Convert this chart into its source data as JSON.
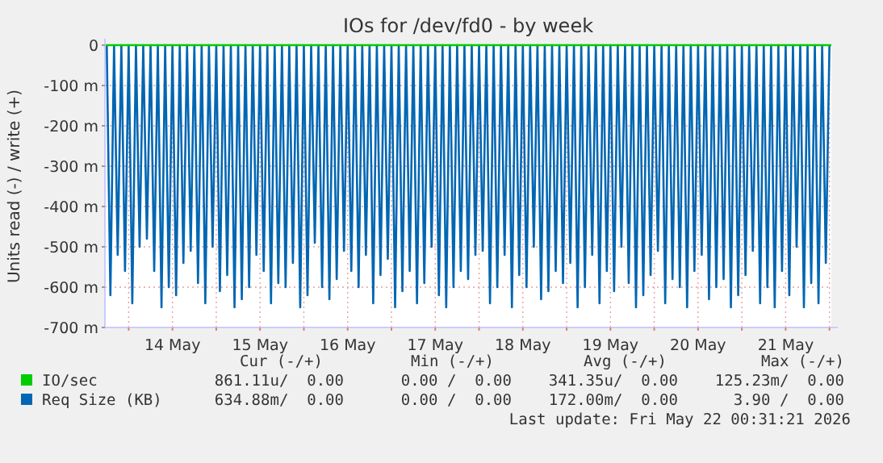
{
  "chart_data": {
    "type": "line",
    "title": "IOs for /dev/fd0 - by week",
    "ylabel": "Units read (-) / write (+)",
    "xlim": [
      "2026-05-13T17:30",
      "2026-05-22T00:31"
    ],
    "xticks": [
      {
        "value": "2026-05-14T00:00",
        "label": null
      },
      {
        "value": "2026-05-14T12:00",
        "label": "14 May"
      },
      {
        "value": "2026-05-15T00:00",
        "label": null
      },
      {
        "value": "2026-05-15T12:00",
        "label": "15 May"
      },
      {
        "value": "2026-05-16T00:00",
        "label": null
      },
      {
        "value": "2026-05-16T12:00",
        "label": "16 May"
      },
      {
        "value": "2026-05-17T00:00",
        "label": null
      },
      {
        "value": "2026-05-17T12:00",
        "label": "17 May"
      },
      {
        "value": "2026-05-18T00:00",
        "label": null
      },
      {
        "value": "2026-05-18T12:00",
        "label": "18 May"
      },
      {
        "value": "2026-05-19T00:00",
        "label": null
      },
      {
        "value": "2026-05-19T12:00",
        "label": "19 May"
      },
      {
        "value": "2026-05-20T00:00",
        "label": null
      },
      {
        "value": "2026-05-20T12:00",
        "label": "20 May"
      },
      {
        "value": "2026-05-21T00:00",
        "label": null
      },
      {
        "value": "2026-05-21T12:00",
        "label": "21 May"
      },
      {
        "value": "2026-05-22T00:00",
        "label": null
      }
    ],
    "ylim": [
      -700,
      0
    ],
    "yticks": [
      {
        "value": -700,
        "label": "-700 m"
      },
      {
        "value": -600,
        "label": "-600 m"
      },
      {
        "value": -500,
        "label": "-500 m"
      },
      {
        "value": -400,
        "label": "-400 m"
      },
      {
        "value": -300,
        "label": "-300 m"
      },
      {
        "value": -200,
        "label": "-200 m"
      },
      {
        "value": -100,
        "label": "-100 m"
      },
      0
    ],
    "grid": true,
    "legend": "bottom",
    "series": [
      {
        "name": "IO/sec",
        "color": "#00cc00",
        "x": [
          "2026-05-13T17:30",
          "2026-05-22T00:31"
        ],
        "values": [
          0,
          0
        ]
      },
      {
        "name": "Req Size (KB)",
        "color": "#0066b3",
        "x": [
          "2026-05-13T18:00",
          "2026-05-13T19:00",
          "2026-05-13T20:00",
          "2026-05-13T21:00",
          "2026-05-13T22:00",
          "2026-05-13T23:00",
          "2026-05-14T00:00",
          "2026-05-14T01:00",
          "2026-05-14T02:00",
          "2026-05-14T03:00",
          "2026-05-14T04:00",
          "2026-05-14T05:00",
          "2026-05-14T06:00",
          "2026-05-14T07:00",
          "2026-05-14T08:00",
          "2026-05-14T09:00",
          "2026-05-14T10:00",
          "2026-05-14T11:00",
          "2026-05-14T12:00",
          "2026-05-14T13:00",
          "2026-05-14T14:00",
          "2026-05-14T15:00",
          "2026-05-14T16:00",
          "2026-05-14T17:00",
          "2026-05-14T18:00",
          "2026-05-14T19:00",
          "2026-05-14T20:00",
          "2026-05-14T21:00",
          "2026-05-14T22:00",
          "2026-05-14T23:00",
          "2026-05-15T00:00",
          "2026-05-15T01:00",
          "2026-05-15T02:00",
          "2026-05-15T03:00",
          "2026-05-15T04:00",
          "2026-05-15T05:00",
          "2026-05-15T06:00",
          "2026-05-15T07:00",
          "2026-05-15T08:00",
          "2026-05-15T09:00",
          "2026-05-15T10:00",
          "2026-05-15T11:00",
          "2026-05-15T12:00",
          "2026-05-15T13:00",
          "2026-05-15T14:00",
          "2026-05-15T15:00",
          "2026-05-15T16:00",
          "2026-05-15T17:00",
          "2026-05-15T18:00",
          "2026-05-15T19:00",
          "2026-05-15T20:00",
          "2026-05-15T21:00",
          "2026-05-15T22:00",
          "2026-05-15T23:00",
          "2026-05-16T00:00",
          "2026-05-16T01:00",
          "2026-05-16T02:00",
          "2026-05-16T03:00",
          "2026-05-16T04:00",
          "2026-05-16T05:00",
          "2026-05-16T06:00",
          "2026-05-16T07:00",
          "2026-05-16T08:00",
          "2026-05-16T09:00",
          "2026-05-16T10:00",
          "2026-05-16T11:00",
          "2026-05-16T12:00",
          "2026-05-16T13:00",
          "2026-05-16T14:00",
          "2026-05-16T15:00",
          "2026-05-16T16:00",
          "2026-05-16T17:00",
          "2026-05-16T18:00",
          "2026-05-16T19:00",
          "2026-05-16T20:00",
          "2026-05-16T21:00",
          "2026-05-16T22:00",
          "2026-05-16T23:00",
          "2026-05-17T00:00",
          "2026-05-17T01:00",
          "2026-05-17T02:00",
          "2026-05-17T03:00",
          "2026-05-17T04:00",
          "2026-05-17T05:00",
          "2026-05-17T06:00",
          "2026-05-17T07:00",
          "2026-05-17T08:00",
          "2026-05-17T09:00",
          "2026-05-17T10:00",
          "2026-05-17T11:00",
          "2026-05-17T12:00",
          "2026-05-17T13:00",
          "2026-05-17T14:00",
          "2026-05-17T15:00",
          "2026-05-17T16:00",
          "2026-05-17T17:00",
          "2026-05-17T18:00",
          "2026-05-17T19:00",
          "2026-05-17T20:00",
          "2026-05-17T21:00",
          "2026-05-17T22:00",
          "2026-05-17T23:00",
          "2026-05-18T00:00",
          "2026-05-18T01:00",
          "2026-05-18T02:00",
          "2026-05-18T03:00",
          "2026-05-18T04:00",
          "2026-05-18T05:00",
          "2026-05-18T06:00",
          "2026-05-18T07:00",
          "2026-05-18T08:00",
          "2026-05-18T09:00",
          "2026-05-18T10:00",
          "2026-05-18T11:00",
          "2026-05-18T12:00",
          "2026-05-18T13:00",
          "2026-05-18T14:00",
          "2026-05-18T15:00",
          "2026-05-18T16:00",
          "2026-05-18T17:00",
          "2026-05-18T18:00",
          "2026-05-18T19:00",
          "2026-05-18T20:00",
          "2026-05-18T21:00",
          "2026-05-18T22:00",
          "2026-05-18T23:00",
          "2026-05-19T00:00",
          "2026-05-19T01:00",
          "2026-05-19T02:00",
          "2026-05-19T03:00",
          "2026-05-19T04:00",
          "2026-05-19T05:00",
          "2026-05-19T06:00",
          "2026-05-19T07:00",
          "2026-05-19T08:00",
          "2026-05-19T09:00",
          "2026-05-19T10:00",
          "2026-05-19T11:00",
          "2026-05-19T12:00",
          "2026-05-19T13:00",
          "2026-05-19T14:00",
          "2026-05-19T15:00",
          "2026-05-19T16:00",
          "2026-05-19T17:00",
          "2026-05-19T18:00",
          "2026-05-19T19:00",
          "2026-05-19T20:00",
          "2026-05-19T21:00",
          "2026-05-19T22:00",
          "2026-05-19T23:00",
          "2026-05-20T00:00",
          "2026-05-20T01:00",
          "2026-05-20T02:00",
          "2026-05-20T03:00",
          "2026-05-20T04:00",
          "2026-05-20T05:00",
          "2026-05-20T06:00",
          "2026-05-20T07:00",
          "2026-05-20T08:00",
          "2026-05-20T09:00",
          "2026-05-20T10:00",
          "2026-05-20T11:00",
          "2026-05-20T12:00",
          "2026-05-20T13:00",
          "2026-05-20T14:00",
          "2026-05-20T15:00",
          "2026-05-20T16:00",
          "2026-05-20T17:00",
          "2026-05-20T18:00",
          "2026-05-20T19:00",
          "2026-05-20T20:00",
          "2026-05-20T21:00",
          "2026-05-20T22:00",
          "2026-05-20T23:00",
          "2026-05-21T00:00",
          "2026-05-21T01:00",
          "2026-05-21T02:00",
          "2026-05-21T03:00",
          "2026-05-21T04:00",
          "2026-05-21T05:00",
          "2026-05-21T06:00",
          "2026-05-21T07:00",
          "2026-05-21T08:00",
          "2026-05-21T09:00",
          "2026-05-21T10:00",
          "2026-05-21T11:00",
          "2026-05-21T12:00",
          "2026-05-21T13:00",
          "2026-05-21T14:00",
          "2026-05-21T15:00",
          "2026-05-21T16:00",
          "2026-05-21T17:00",
          "2026-05-21T18:00",
          "2026-05-21T19:00",
          "2026-05-21T20:00",
          "2026-05-21T21:00",
          "2026-05-21T22:00",
          "2026-05-21T23:00",
          "2026-05-22T00:00"
        ],
        "values": [
          0,
          -620,
          0,
          -520,
          0,
          -560,
          0,
          -640,
          0,
          -500,
          0,
          -480,
          0,
          -560,
          0,
          -650,
          0,
          -600,
          0,
          -620,
          0,
          -540,
          0,
          -510,
          0,
          -590,
          0,
          -640,
          0,
          -500,
          0,
          -610,
          0,
          -570,
          0,
          -650,
          0,
          -630,
          0,
          -600,
          0,
          -520,
          0,
          -560,
          0,
          -640,
          0,
          -590,
          0,
          -600,
          0,
          -540,
          0,
          -650,
          0,
          -620,
          0,
          -490,
          0,
          -600,
          0,
          -630,
          0,
          -580,
          0,
          -510,
          0,
          -560,
          0,
          -600,
          0,
          -520,
          0,
          -640,
          0,
          -570,
          0,
          -530,
          0,
          -650,
          0,
          -610,
          0,
          -560,
          0,
          -640,
          0,
          -590,
          0,
          -500,
          0,
          -620,
          0,
          -650,
          0,
          -600,
          0,
          -560,
          0,
          -580,
          0,
          -520,
          0,
          -510,
          0,
          -640,
          0,
          -600,
          0,
          -520,
          0,
          -650,
          0,
          -570,
          0,
          -600,
          0,
          -500,
          0,
          -630,
          0,
          -610,
          0,
          -560,
          0,
          -590,
          0,
          -540,
          0,
          -650,
          0,
          -600,
          0,
          -520,
          0,
          -640,
          0,
          -560,
          0,
          -610,
          0,
          -500,
          0,
          -590,
          0,
          -650,
          0,
          -620,
          0,
          -570,
          0,
          -510,
          0,
          -640,
          0,
          -580,
          0,
          -600,
          0,
          -650,
          0,
          -560,
          0,
          -520,
          0,
          -630,
          0,
          -600,
          0,
          -580,
          0,
          -650,
          0,
          -620,
          0,
          -570,
          0,
          -510,
          0,
          -640,
          0,
          -600,
          0,
          -650,
          0,
          -560,
          0,
          -620,
          0,
          -500,
          0,
          -650,
          0,
          -590,
          0,
          -640,
          0,
          -540,
          0
        ]
      }
    ],
    "annotations": [
      "Cur (-/+)",
      "Min (-/+)",
      "Avg (-/+)",
      "Max (-/+)",
      "861.11u/  0.00",
      "0.00 /  0.00",
      "341.35u/  0.00",
      "125.23m/  0.00",
      "634.88m/  0.00",
      "0.00 /  0.00",
      "172.00m/  0.00",
      "3.90 /  0.00",
      "Last update: Fri May 22 00:31:21 2026"
    ]
  }
}
